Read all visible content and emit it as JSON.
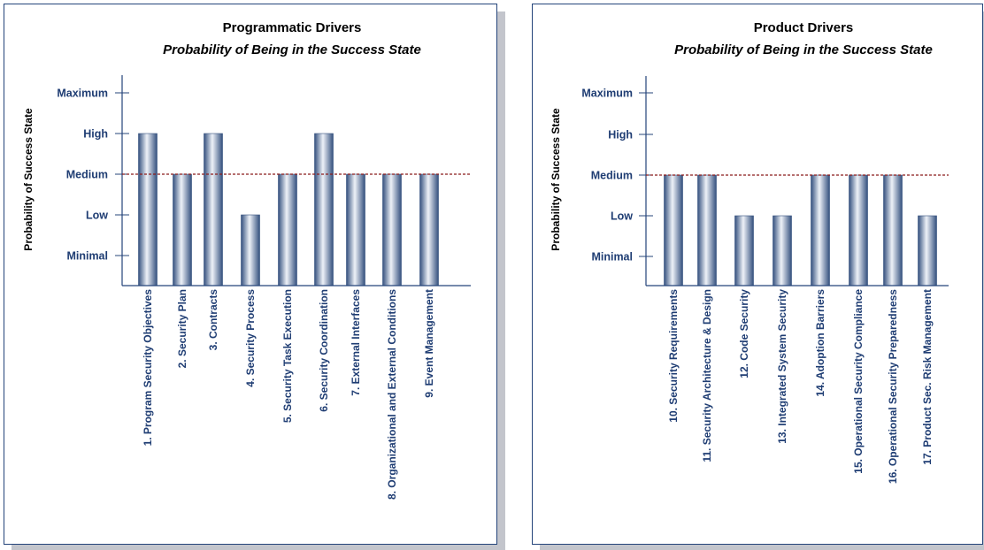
{
  "colors": {
    "axis": "#24447a",
    "label": "#1f3d73",
    "reference_line": "#8b1a1a",
    "bar_dark": "#34507e",
    "bar_light": "#eef2f8",
    "shadow": "#c3c5cc"
  },
  "chart_data": [
    {
      "type": "bar",
      "title": "Programmatic Drivers",
      "subtitle": "Probability of Being in the Success State",
      "ylabel": "Probability of Success State",
      "xlabel": "",
      "y_levels": [
        "Minimal",
        "Low",
        "Medium",
        "High",
        "Maximum"
      ],
      "ylim": [
        0,
        5
      ],
      "reference_line": {
        "value": 3,
        "style": "dashed",
        "color": "#8b1a1a"
      },
      "grid": false,
      "legend": "none",
      "categories": [
        "1. Program Security Objectives",
        "2. Security Plan",
        "3. Contracts",
        "4. Security Process",
        "5. Security Task Execution",
        "6. Security Coordination",
        "7. External Interfaces",
        "8. Organizational and External Conditions",
        "9. Event Management"
      ],
      "values": [
        4,
        3,
        4,
        2,
        3,
        4,
        3,
        3,
        3
      ]
    },
    {
      "type": "bar",
      "title": "Product Drivers",
      "subtitle": "Probability of Being in the Success State",
      "ylabel": "Probability of Success State",
      "xlabel": "",
      "y_levels": [
        "Minimal",
        "Low",
        "Medium",
        "High",
        "Maximum"
      ],
      "ylim": [
        0,
        5
      ],
      "reference_line": {
        "value": 3,
        "style": "dashed",
        "color": "#8b1a1a"
      },
      "grid": false,
      "legend": "none",
      "categories": [
        "10. Security Requirements",
        "11. Security Architecture  & Design",
        "12. Code Security",
        "13. Integrated System  Security",
        "14. Adoption Barriers",
        "15. Operational Security Compliance",
        "16. Operational Security Preparedness",
        "17. Product Sec. Risk Management"
      ],
      "values": [
        3,
        3,
        2,
        2,
        3,
        3,
        3,
        2
      ]
    }
  ]
}
